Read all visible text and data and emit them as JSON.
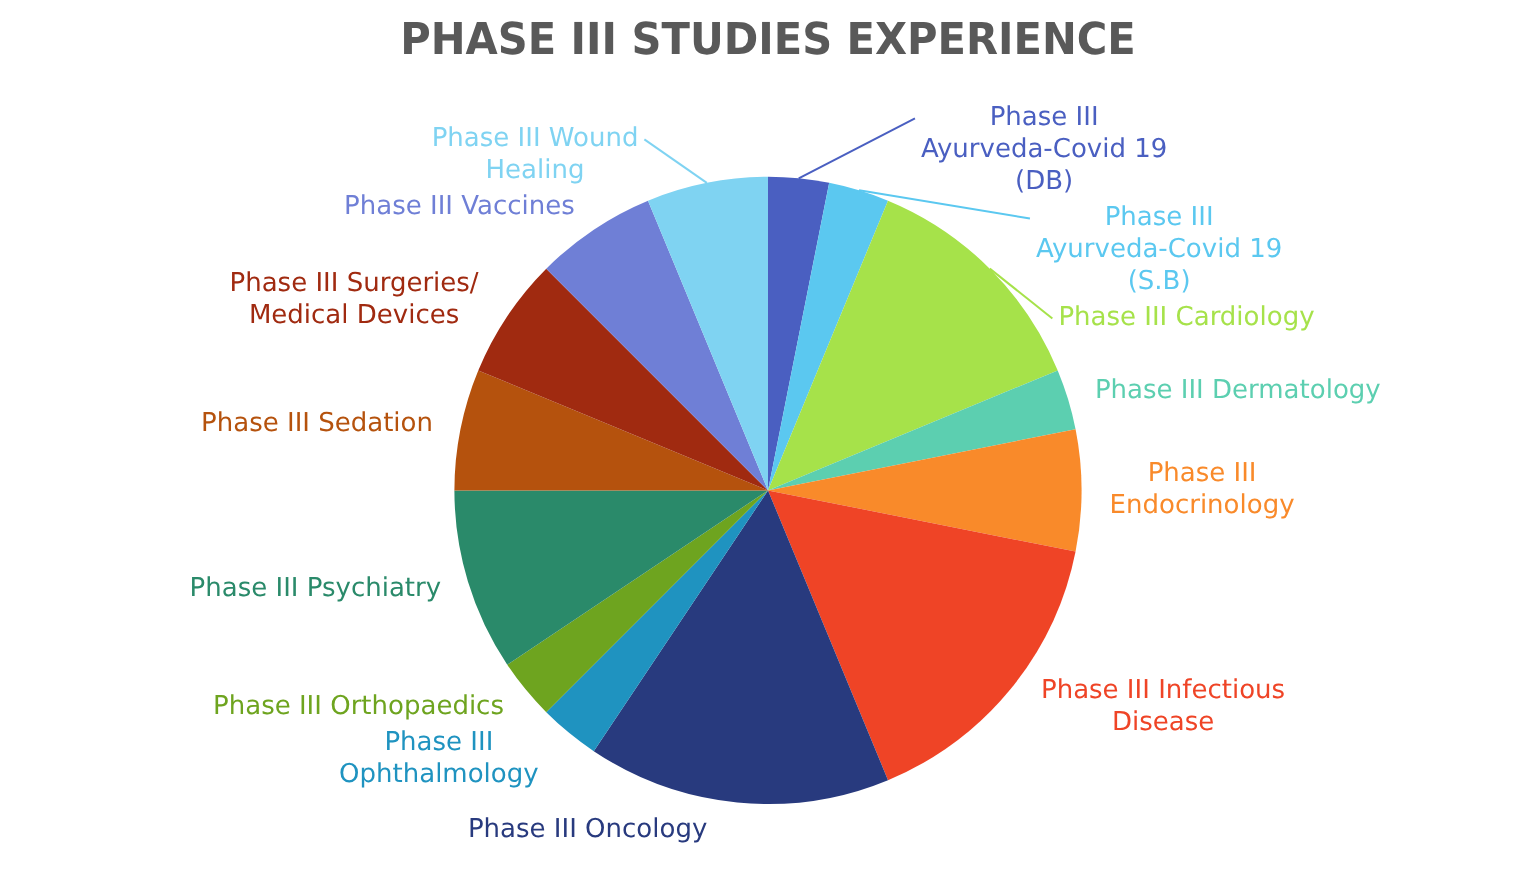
{
  "chart_data": {
    "type": "pie",
    "title": "PHASE III STUDIES EXPERIENCE",
    "categories": [
      "Phase III Ayurveda-Covid 19 (DB)",
      "Phase III Ayurveda-Covid 19 (S.B)",
      "Phase III Cardiology",
      "Phase III Dermatology",
      "Phase III Endocrinology",
      "Phase III Infectious Disease",
      "Phase III Oncology",
      "Phase III Ophthalmology",
      "Phase III Orthopaedics",
      "Phase III Psychiatry",
      "Phase III Sedation",
      "Phase III Surgeries/ Medical Devices",
      "Phase III Vaccines",
      "Phase III Wound Healing"
    ],
    "values": [
      3.125,
      3.125,
      12.5,
      3.125,
      6.25,
      15.625,
      15.625,
      3.125,
      3.125,
      9.375,
      6.25,
      6.25,
      6.25,
      6.25
    ],
    "colors": [
      "#4a5fc1",
      "#5bc8f0",
      "#a6e24a",
      "#5ccfb0",
      "#f98a2a",
      "#ef4426",
      "#283a7e",
      "#1f93c0",
      "#6ea41f",
      "#2a8a6a",
      "#b5520d",
      "#a02a10",
      "#6f7fd6",
      "#7fd3f2"
    ],
    "legend": false
  }
}
